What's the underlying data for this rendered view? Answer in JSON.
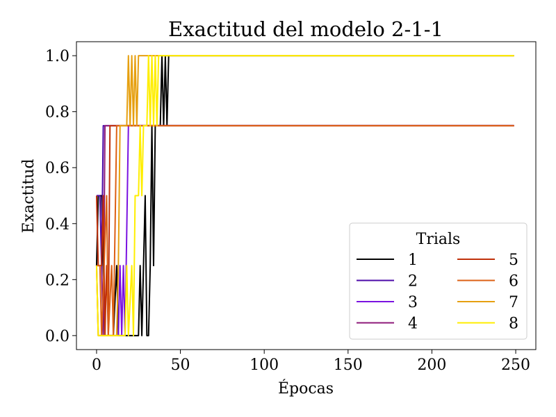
{
  "chart_data": {
    "type": "line",
    "title": "Exactitud del modelo 2-1-1",
    "xlabel": "Épocas",
    "ylabel": "Exactitud",
    "xlim": [
      -12,
      262
    ],
    "ylim": [
      -0.05,
      1.05
    ],
    "xticks": [
      0,
      50,
      100,
      150,
      200,
      250
    ],
    "yticks": [
      0.0,
      0.2,
      0.4,
      0.6,
      0.8,
      1.0
    ],
    "xtick_labels": [
      "0",
      "50",
      "100",
      "150",
      "200",
      "250"
    ],
    "ytick_labels": [
      "0.0",
      "0.2",
      "0.4",
      "0.6",
      "0.8",
      "1.0"
    ],
    "grid": false,
    "legend": {
      "title": "Trials",
      "placement": "lower-right",
      "columns": 2
    },
    "series": [
      {
        "name": "1",
        "color": "#000000",
        "points": [
          [
            0,
            0.25
          ],
          [
            1,
            0.5
          ],
          [
            3,
            0.5
          ],
          [
            4,
            0.25
          ],
          [
            5,
            0.0
          ],
          [
            10,
            0.0
          ],
          [
            12,
            0.25
          ],
          [
            13,
            0.0
          ],
          [
            25,
            0.0
          ],
          [
            26,
            0.25
          ],
          [
            27,
            0.0
          ],
          [
            29,
            0.5
          ],
          [
            30,
            0.0
          ],
          [
            31,
            0.0
          ],
          [
            32,
            0.25
          ],
          [
            33,
            0.75
          ],
          [
            34,
            0.25
          ],
          [
            35,
            0.75
          ],
          [
            38,
            0.75
          ],
          [
            39,
            1.0
          ],
          [
            40,
            0.75
          ],
          [
            41,
            1.0
          ],
          [
            42,
            0.75
          ],
          [
            43,
            1.0
          ],
          [
            249,
            1.0
          ]
        ]
      },
      {
        "name": "2",
        "color": "#4b0aa8",
        "points": [
          [
            0,
            0.5
          ],
          [
            2,
            0.5
          ],
          [
            3,
            0.25
          ],
          [
            4,
            0.75
          ],
          [
            249,
            0.75
          ]
        ]
      },
      {
        "name": "3",
        "color": "#7a12e0",
        "points": [
          [
            0,
            0.25
          ],
          [
            1,
            0.0
          ],
          [
            13,
            0.0
          ],
          [
            14,
            0.25
          ],
          [
            15,
            0.0
          ],
          [
            16,
            0.25
          ],
          [
            17,
            0.0
          ],
          [
            19,
            0.75
          ],
          [
            249,
            0.75
          ]
        ]
      },
      {
        "name": "4",
        "color": "#8d1a7a",
        "points": [
          [
            0,
            0.25
          ],
          [
            3,
            0.25
          ],
          [
            4,
            0.0
          ],
          [
            5,
            0.75
          ],
          [
            249,
            0.75
          ]
        ]
      },
      {
        "name": "5",
        "color": "#c0300a",
        "points": [
          [
            0,
            0.5
          ],
          [
            1,
            0.25
          ],
          [
            3,
            0.25
          ],
          [
            4,
            0.5
          ],
          [
            5,
            0.0
          ],
          [
            6,
            0.25
          ],
          [
            7,
            0.0
          ],
          [
            8,
            0.75
          ],
          [
            249,
            0.75
          ]
        ]
      },
      {
        "name": "6",
        "color": "#dc6014",
        "points": [
          [
            0,
            0.25
          ],
          [
            2,
            0.25
          ],
          [
            3,
            0.0
          ],
          [
            6,
            0.5
          ],
          [
            7,
            0.0
          ],
          [
            9,
            0.25
          ],
          [
            10,
            0.0
          ],
          [
            12,
            0.75
          ],
          [
            249,
            0.75
          ]
        ]
      },
      {
        "name": "7",
        "color": "#e6a010",
        "points": [
          [
            0,
            0.25
          ],
          [
            1,
            0.0
          ],
          [
            12,
            0.0
          ],
          [
            13,
            0.25
          ],
          [
            14,
            0.75
          ],
          [
            18,
            0.75
          ],
          [
            19,
            1.0
          ],
          [
            20,
            0.75
          ],
          [
            21,
            1.0
          ],
          [
            22,
            0.75
          ],
          [
            23,
            1.0
          ],
          [
            24,
            0.75
          ],
          [
            25,
            1.0
          ],
          [
            249,
            1.0
          ]
        ]
      },
      {
        "name": "8",
        "color": "#ffee00",
        "points": [
          [
            0,
            0.25
          ],
          [
            1,
            0.0
          ],
          [
            17,
            0.0
          ],
          [
            18,
            0.25
          ],
          [
            19,
            0.0
          ],
          [
            21,
            0.25
          ],
          [
            22,
            0.0
          ],
          [
            23,
            0.5
          ],
          [
            24,
            0.5
          ],
          [
            25,
            0.5
          ],
          [
            26,
            0.75
          ],
          [
            27,
            0.5
          ],
          [
            28,
            0.75
          ],
          [
            30,
            0.75
          ],
          [
            31,
            1.0
          ],
          [
            32,
            0.75
          ],
          [
            33,
            1.0
          ],
          [
            34,
            0.75
          ],
          [
            35,
            1.0
          ],
          [
            36,
            0.75
          ],
          [
            37,
            1.0
          ],
          [
            249,
            1.0
          ]
        ]
      }
    ]
  }
}
